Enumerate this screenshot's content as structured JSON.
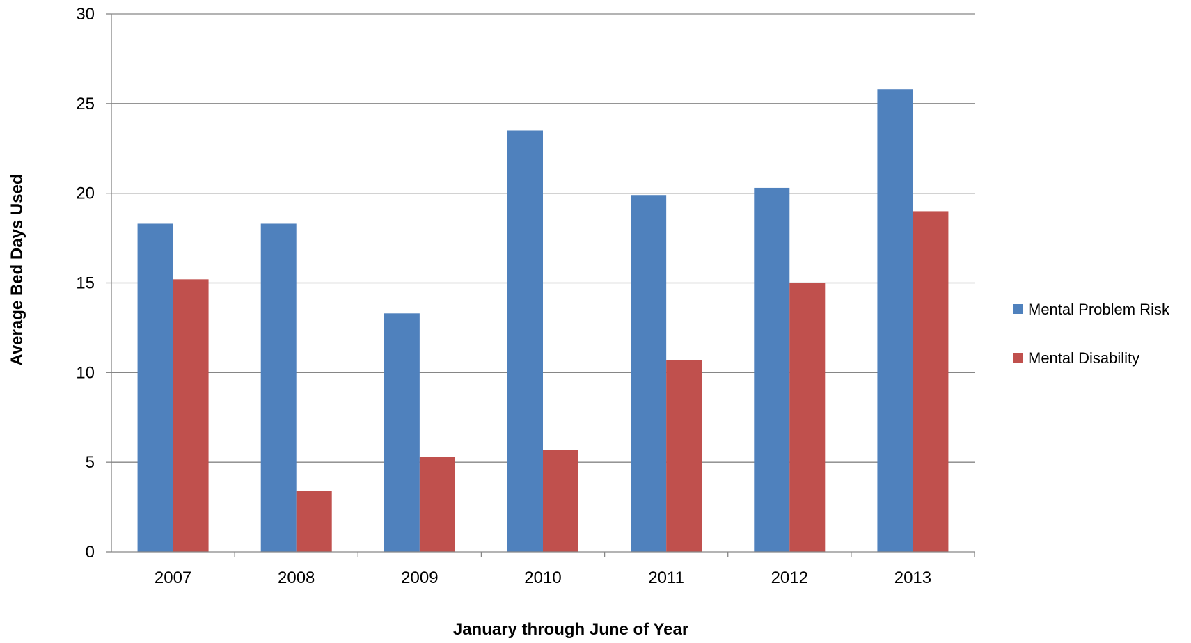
{
  "chart_data": {
    "type": "bar",
    "title": "",
    "xlabel": "January through June of Year",
    "ylabel": "Average Bed Days Used",
    "categories": [
      "2007",
      "2008",
      "2009",
      "2010",
      "2011",
      "2012",
      "2013"
    ],
    "series": [
      {
        "name": "Mental Problem Risk",
        "color": "#4F81BD",
        "values": [
          18.3,
          18.3,
          13.3,
          23.5,
          19.9,
          20.3,
          25.8
        ]
      },
      {
        "name": "Mental Disability",
        "color": "#C0504D",
        "values": [
          15.2,
          3.4,
          5.3,
          5.7,
          10.7,
          15.0,
          19.0
        ]
      }
    ],
    "ylim": [
      0,
      30
    ],
    "yticks": [
      "0",
      "5",
      "10",
      "15",
      "20",
      "25",
      "30"
    ],
    "grid": true,
    "legend_position": "right"
  }
}
